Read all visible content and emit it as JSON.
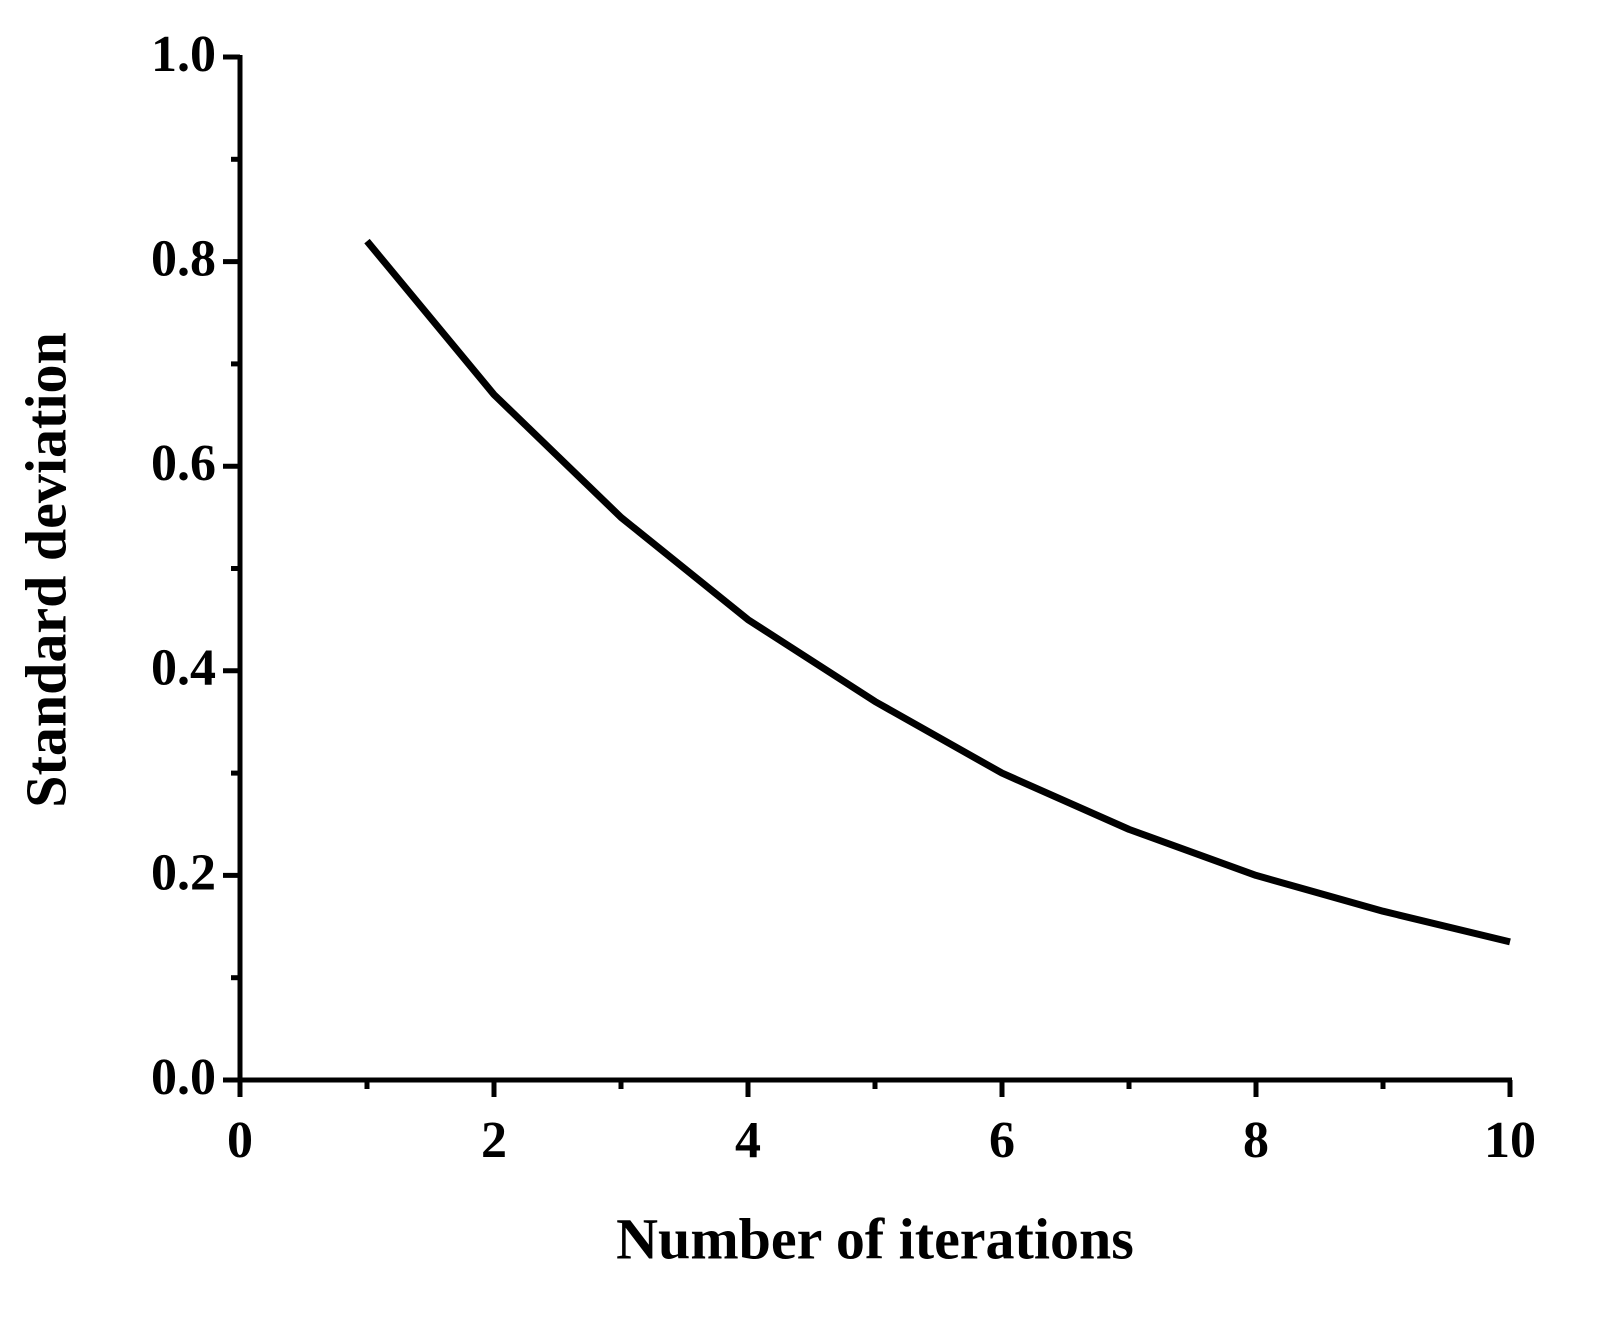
{
  "chart_data": {
    "type": "line",
    "x_label": "Number of iterations",
    "y_label": "Standard deviation",
    "x": [
      1,
      2,
      3,
      4,
      5,
      6,
      7,
      8,
      9,
      10
    ],
    "series": [
      {
        "name": "Standard deviation",
        "color": "#000000",
        "values": [
          0.82,
          0.67,
          0.55,
          0.45,
          0.37,
          0.3,
          0.245,
          0.2,
          0.165,
          0.135
        ]
      }
    ],
    "xlim": [
      0,
      10
    ],
    "xticks": [
      0,
      2,
      4,
      6,
      8,
      10
    ],
    "xminorticks": [
      1,
      3,
      5,
      7,
      9
    ],
    "ylim": [
      0,
      1
    ],
    "yticks": [
      {
        "value": 0,
        "label": "0.0"
      },
      0.2,
      0.4,
      0.6,
      0.8,
      {
        "value": 1,
        "label": "1.0"
      }
    ],
    "yminorticks": [
      0.1,
      0.3,
      0.5,
      0.7,
      0.9
    ],
    "grid": false
  }
}
